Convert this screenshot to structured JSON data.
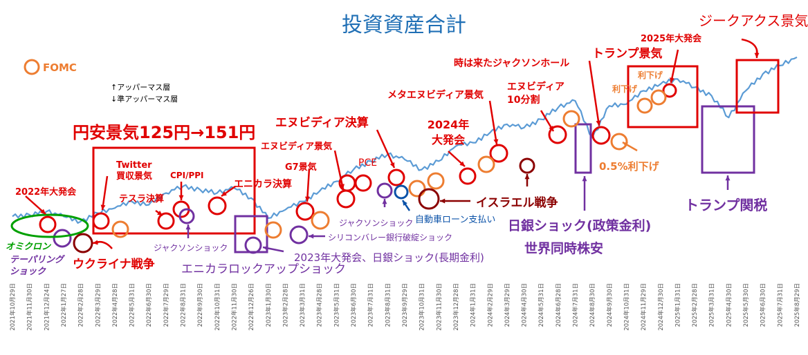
{
  "chart_data": {
    "type": "line",
    "title": "投資資産合計",
    "xlabel": "",
    "ylabel": "",
    "grid": false,
    "colors": {
      "series": "#5b9bd5",
      "event": "#e00000",
      "fomc": "#ed7d31",
      "shock": "#7030a0",
      "omicron": "#00a000",
      "arrow_dark": "#8b0000",
      "blue_event": "#0b52a8",
      "title": "#1f6fb5"
    },
    "x_tick_labels": [
      "2021年10月29日",
      "2021年11月30日",
      "2021年12月24日",
      "2022年1月27日",
      "2022年2月28日",
      "2022年3月29日",
      "2022年4月28日",
      "2022年5月31日",
      "2022年6月30日",
      "2022年7月29日",
      "2022年8月31日",
      "2022年9月30日",
      "2022年10月31日",
      "2022年11月30日",
      "2022年12月26日",
      "2023年1月30日",
      "2023年2月28日",
      "2023年3月31日",
      "2023年4月28日",
      "2023年5月31日",
      "2023年6月30日",
      "2023年7月31日",
      "2023年8月31日",
      "2023年9月29日",
      "2023年10月31日",
      "2023年11月30日",
      "2023年12月28日",
      "2024年1月31日",
      "2024年2月29日",
      "2024年3月29日",
      "2024年4月30日",
      "2024年5月31日",
      "2024年6月28日",
      "2024年7月31日",
      "2024年8月30日",
      "2024年9月30日",
      "2024年10月31日",
      "2024年11月29日",
      "2024年12月30日",
      "2025年1月31日",
      "2025年2月28日",
      "2025年3月31日",
      "2025年4月30日",
      "2025年5月30日",
      "2025年6月30日",
      "2025年7月31日",
      "2025年8月29日"
    ],
    "series": [
      {
        "x": [
          0,
          1,
          2,
          3,
          4,
          5,
          6,
          7,
          8,
          9,
          10,
          11,
          12,
          13,
          14,
          15,
          16,
          17,
          18,
          19,
          20,
          21,
          22,
          23,
          24,
          25,
          26,
          27,
          28,
          29,
          30,
          31,
          32,
          33,
          34,
          35,
          36,
          37,
          38,
          39,
          40,
          41,
          42,
          43,
          44,
          45,
          46
        ],
        "values": [
          13,
          14,
          16,
          13,
          10,
          15,
          18,
          22,
          20,
          27,
          31,
          29,
          27,
          30,
          24,
          12,
          17,
          22,
          28,
          34,
          41,
          46,
          50,
          47,
          41,
          46,
          55,
          57,
          63,
          68,
          66,
          71,
          78,
          82,
          60,
          79,
          80,
          88,
          92,
          95,
          90,
          85,
          72,
          88,
          98,
          103,
          108
        ]
      }
    ],
    "annotations": {
      "title": "投資資産合計",
      "fomc_legend": "FOMC",
      "upper_mass": "↑アッパーマス層",
      "semi_upper": "↓準アッパーマス層",
      "yen_weak": "円安景気125円→151円",
      "twitter": "Twitter\n買収景気",
      "cpi": "CPI/PPI",
      "tesla": "テスラ決算",
      "nvidia_rally": "エヌビディア景気",
      "nvidia_earn": "エヌビディア決算",
      "pce": "PCE",
      "g7": "G7景気",
      "enikara": "エニカラ決算",
      "y2022": "2022年大発会",
      "omicron": "オミクロン",
      "tapering": "テーパリング\nショック",
      "ukraine": "ウクライナ戦争",
      "jackson1": "ジャクソンショック",
      "enikara_lockup": "エニカラロックアップショック",
      "y2023": "2023年大発会、日銀ショック(長期金利)",
      "svb": "シリコンバレー銀行破綻ショック",
      "jackson2": "ジャクソンショック",
      "auto_loan": "自動車ローン支払い",
      "israel": "イスラエル戦争",
      "y2024": "2024年\n大発会",
      "meta_nvidia": "メタエヌビディア景気",
      "nvidia_split": "エヌビディア\n10分割",
      "jackson_hole": "時は来たジャクソンホール",
      "boj_shock": "日銀ショック(政策金利)",
      "world_crash": "世界同時株安",
      "cut05": "0.5%利下げ",
      "trump_rally": "トランプ景気",
      "y2025": "2025年大発会",
      "cut1": "利下げ",
      "cut2": "利下げ",
      "trump_tariff": "トランプ関税",
      "zeekax": "ジークアクス景気"
    }
  }
}
